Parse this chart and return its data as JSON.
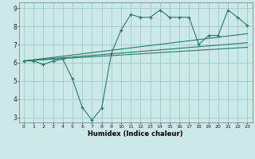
{
  "xlabel": "Humidex (Indice chaleur)",
  "ylabel": "",
  "bg_color": "#cce8e8",
  "line_color": "#2a7a6a",
  "grid_color": "#99cccc",
  "xlim": [
    -0.5,
    23.5
  ],
  "ylim": [
    2.7,
    9.3
  ],
  "xticks": [
    0,
    1,
    2,
    3,
    4,
    5,
    6,
    7,
    8,
    9,
    10,
    11,
    12,
    13,
    14,
    15,
    16,
    17,
    18,
    19,
    20,
    21,
    22,
    23
  ],
  "yticks": [
    3,
    4,
    5,
    6,
    7,
    8,
    9
  ],
  "main_x": [
    0,
    1,
    2,
    3,
    4,
    5,
    6,
    7,
    8,
    9,
    10,
    11,
    12,
    13,
    14,
    15,
    16,
    17,
    18,
    19,
    20,
    21,
    22,
    23
  ],
  "main_y": [
    6.1,
    6.1,
    5.9,
    6.1,
    6.2,
    5.1,
    3.55,
    2.85,
    3.5,
    6.5,
    7.8,
    8.65,
    8.5,
    8.5,
    8.9,
    8.5,
    8.5,
    8.5,
    7.0,
    7.5,
    7.5,
    8.9,
    8.5,
    8.05
  ],
  "trend1_x": [
    0,
    23
  ],
  "trend1_y": [
    6.1,
    6.85
  ],
  "trend2_x": [
    0,
    23
  ],
  "trend2_y": [
    6.1,
    7.1
  ],
  "trend3_x": [
    0,
    23
  ],
  "trend3_y": [
    6.1,
    7.6
  ]
}
